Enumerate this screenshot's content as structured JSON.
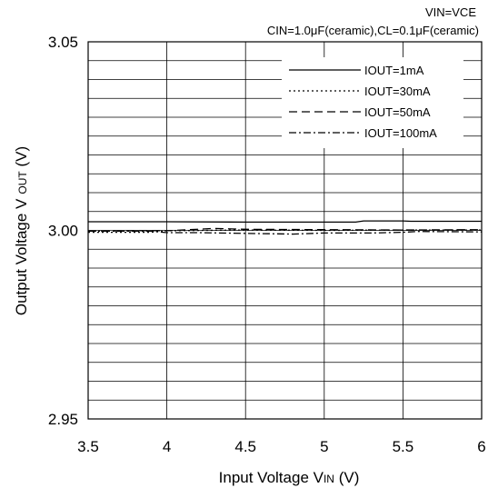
{
  "chart_data": {
    "type": "line",
    "conditions": [
      "VIN=VCE",
      "CIN=1.0μF(ceramic),CL=0.1μF(ceramic)"
    ],
    "xlabel": {
      "main": "Input Voltage V",
      "sub": "IN",
      "unit": " (V)"
    },
    "ylabel": {
      "main": "Output Voltage V",
      "sub": "OUT",
      "unit": " (V)"
    },
    "xlim": [
      3.5,
      6
    ],
    "ylim": [
      2.95,
      3.05
    ],
    "x_ticks": [
      3.5,
      4,
      4.5,
      5,
      5.5,
      6
    ],
    "x_tick_labels": [
      "3.5",
      "4",
      "4.5",
      "5",
      "5.5",
      "6"
    ],
    "y_ticks": [
      2.95,
      3.0,
      3.05
    ],
    "y_tick_labels": [
      "2.95",
      "3.00",
      "3.05"
    ],
    "x_grid_step": 0.5,
    "y_grid_step": 0.005,
    "grid": true,
    "legend_position": "top-right",
    "line_color": "#000000",
    "series": [
      {
        "name": "IOUT=1mA",
        "dash": "solid",
        "x": [
          3.5,
          4.0,
          4.5,
          5.0,
          5.2,
          5.25,
          5.5,
          5.55,
          6.0
        ],
        "y": [
          3.0023,
          3.0023,
          3.0022,
          3.0022,
          3.0022,
          3.0025,
          3.0025,
          3.0024,
          3.0024
        ]
      },
      {
        "name": "IOUT=30mA",
        "dash": "dot",
        "x": [
          3.5,
          3.9,
          4.0,
          4.5,
          5.0,
          5.5,
          6.0
        ],
        "y": [
          2.9995,
          2.9995,
          2.9999,
          3.0001,
          3.0,
          3.0001,
          3.0001
        ]
      },
      {
        "name": "IOUT=50mA",
        "dash": "dash",
        "x": [
          3.5,
          3.8,
          4.0,
          4.3,
          4.5,
          5.0,
          5.5,
          6.0
        ],
        "y": [
          2.9998,
          2.9999,
          2.9999,
          3.0005,
          3.0003,
          3.0002,
          3.0001,
          3.0002
        ]
      },
      {
        "name": "IOUT=100mA",
        "dash": "dashdot",
        "x": [
          3.5,
          3.9,
          4.0,
          4.2,
          4.5,
          4.8,
          5.0,
          5.3,
          5.5,
          5.6,
          6.0
        ],
        "y": [
          2.9998,
          2.9998,
          2.9994,
          2.9994,
          2.9992,
          2.999,
          2.9993,
          2.9993,
          2.9995,
          2.9997,
          2.9996
        ]
      }
    ]
  }
}
